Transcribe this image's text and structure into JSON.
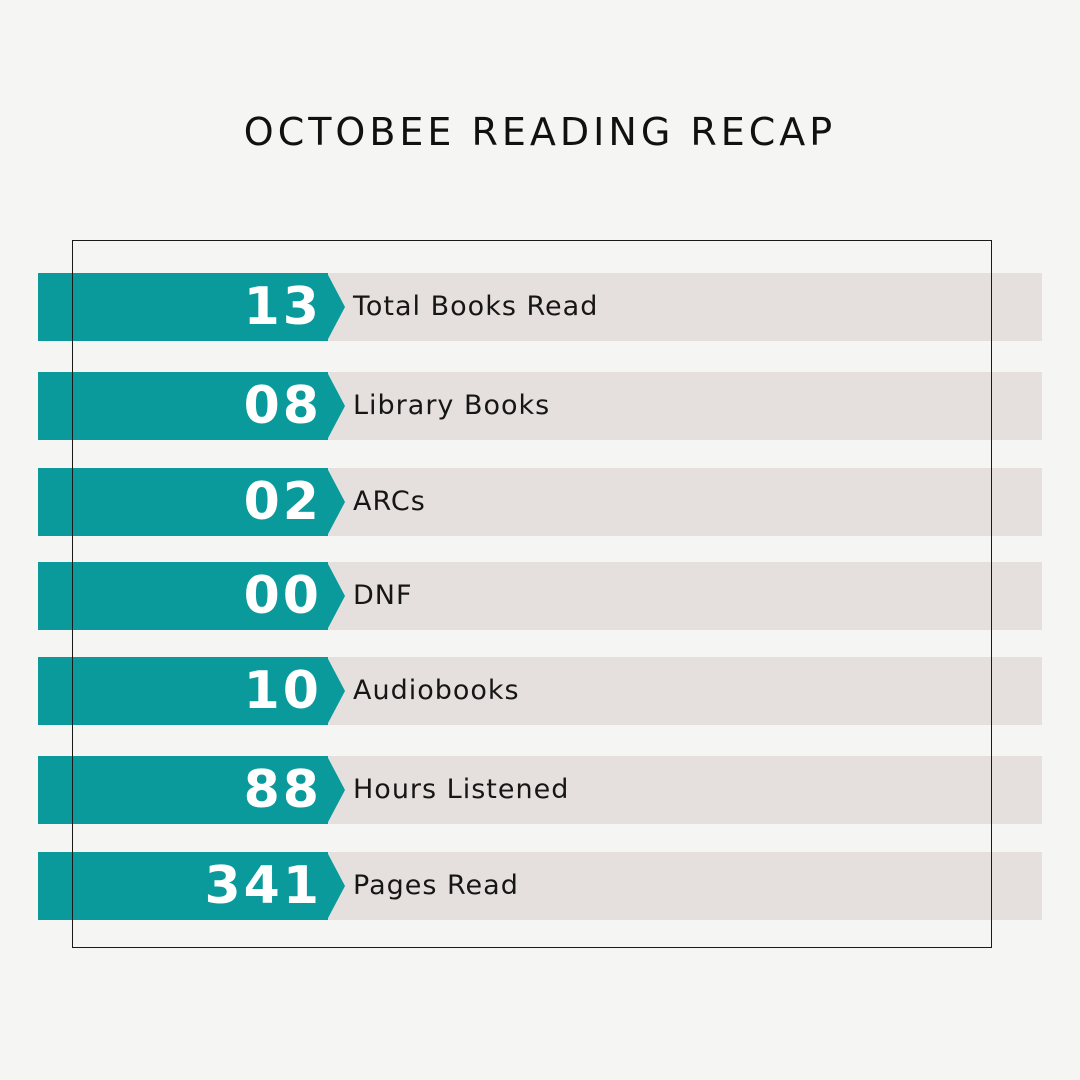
{
  "title": "OCTOBEE READING RECAP",
  "colors": {
    "background": "#f5f5f4",
    "accent": "#0a9a9b",
    "row_fill": "#e5e0dd",
    "frame": "#1a1a1a",
    "text": "#111111"
  },
  "stats": [
    {
      "value": "13",
      "label": "Total Books Read"
    },
    {
      "value": "08",
      "label": "Library Books"
    },
    {
      "value": "02",
      "label": "ARCs"
    },
    {
      "value": "00",
      "label": "DNF"
    },
    {
      "value": "10",
      "label": "Audiobooks"
    },
    {
      "value": "88",
      "label": "Hours Listened"
    },
    {
      "value": "341",
      "label": "Pages Read"
    }
  ]
}
